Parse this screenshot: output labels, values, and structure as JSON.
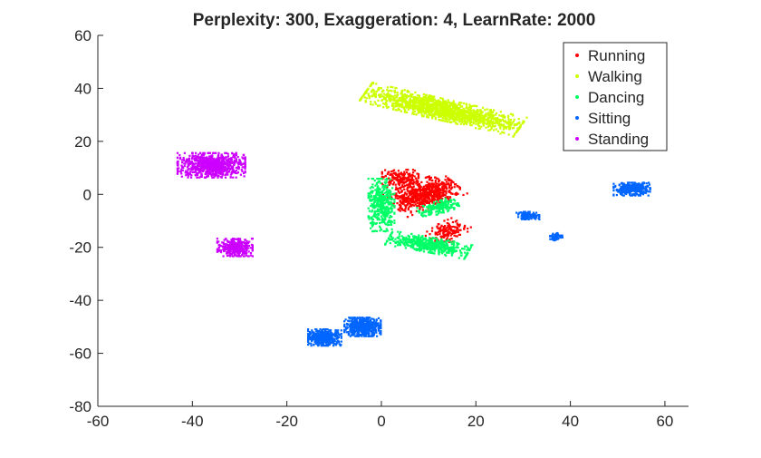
{
  "chart_data": {
    "type": "scatter",
    "title": "Perplexity: 300, Exaggeration: 4, LearnRate: 2000",
    "xlabel": "",
    "ylabel": "",
    "xlim": [
      -60,
      65
    ],
    "ylim": [
      -80,
      60
    ],
    "xticks": [
      -60,
      -40,
      -20,
      0,
      20,
      40,
      60
    ],
    "yticks": [
      60,
      40,
      20,
      0,
      -20,
      -40,
      -60,
      -80
    ],
    "grid": false,
    "legend_position": "top-right",
    "series": [
      {
        "name": "Running",
        "color": "#ff0000",
        "clusters": [
          {
            "center": [
              9,
              0
            ],
            "spread": [
              4.5,
              7
            ],
            "tilt": -55,
            "count": 700
          },
          {
            "center": [
              4,
              6
            ],
            "spread": [
              3.5,
              3
            ],
            "tilt": 0,
            "count": 180
          },
          {
            "center": [
              14,
              -14
            ],
            "spread": [
              3,
              4
            ],
            "tilt": -40,
            "count": 160
          }
        ]
      },
      {
        "name": "Walking",
        "color": "#ccff00",
        "clusters": [
          {
            "center": [
              13,
              32
            ],
            "spread": [
              16,
              3.5
            ],
            "tilt": -22,
            "count": 1500
          }
        ]
      },
      {
        "name": "Dancing",
        "color": "#00ff66",
        "clusters": [
          {
            "center": [
              0,
              -4
            ],
            "spread": [
              2.5,
              9
            ],
            "tilt": 0,
            "count": 420
          },
          {
            "center": [
              10,
              -19
            ],
            "spread": [
              8,
              2.5
            ],
            "tilt": -18,
            "count": 520
          },
          {
            "center": [
              12,
              -5
            ],
            "spread": [
              2,
              4
            ],
            "tilt": -60,
            "count": 180
          }
        ]
      },
      {
        "name": "Sitting",
        "color": "#0066ff",
        "clusters": [
          {
            "center": [
              -4,
              -50
            ],
            "spread": [
              3.5,
              3.2
            ],
            "tilt": 0,
            "count": 520
          },
          {
            "center": [
              -12,
              -54
            ],
            "spread": [
              3.2,
              2.8
            ],
            "tilt": 0,
            "count": 420
          },
          {
            "center": [
              53,
              2
            ],
            "spread": [
              3.5,
              2.2
            ],
            "tilt": 0,
            "count": 320
          },
          {
            "center": [
              31,
              -8
            ],
            "spread": [
              2.2,
              1.3
            ],
            "tilt": 0,
            "count": 110
          },
          {
            "center": [
              37,
              -16
            ],
            "spread": [
              1.2,
              1.3
            ],
            "tilt": 0,
            "count": 60
          }
        ]
      },
      {
        "name": "Standing",
        "color": "#cc00ff",
        "clusters": [
          {
            "center": [
              -36,
              11
            ],
            "spread": [
              6.5,
              4.2
            ],
            "tilt": 0,
            "count": 800
          },
          {
            "center": [
              -31,
              -20
            ],
            "spread": [
              3.4,
              3
            ],
            "tilt": 0,
            "count": 320
          }
        ]
      }
    ]
  }
}
